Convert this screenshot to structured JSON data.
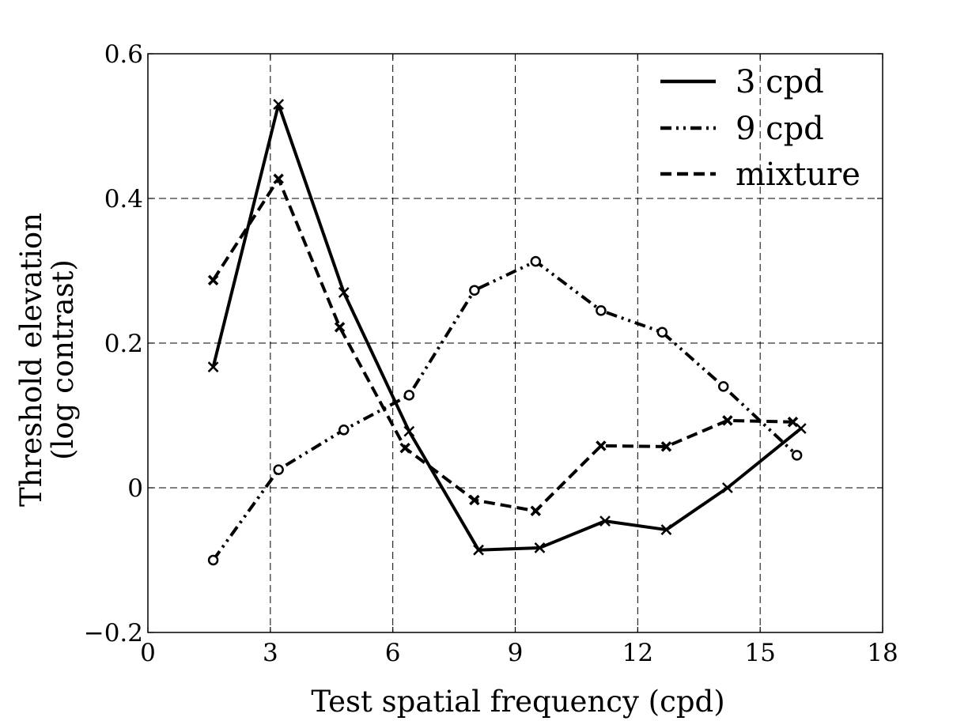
{
  "chart_data": {
    "type": "line",
    "xlabel": "Test spatial frequency (cpd)",
    "ylabel_line1": "Threshold elevation",
    "ylabel_line2": "(log contrast)",
    "xlim": [
      0,
      18
    ],
    "ylim": [
      -0.2,
      0.6
    ],
    "xticks": [
      0,
      3,
      6,
      9,
      12,
      15,
      18
    ],
    "xtick_labels": [
      "0",
      "3",
      "6",
      "9",
      "12",
      "15",
      "18"
    ],
    "yticks": [
      -0.2,
      0,
      0.2,
      0.4,
      0.6
    ],
    "ytick_labels": [
      "−0.2",
      "0",
      "0.2",
      "0.4",
      "0.6"
    ],
    "grid": true,
    "legend_position": "top-right",
    "series": [
      {
        "name": "3 cpd",
        "line_style": "solid",
        "marker": "x",
        "x": [
          1.6,
          3.2,
          4.8,
          6.4,
          8.1,
          9.6,
          11.2,
          12.7,
          14.2,
          16.0
        ],
        "y": [
          0.167,
          0.53,
          0.27,
          0.078,
          -0.086,
          -0.083,
          -0.046,
          -0.058,
          0.0,
          0.082
        ]
      },
      {
        "name": "9 cpd",
        "line_style": "dashdotdot",
        "marker": "o",
        "x": [
          1.6,
          3.2,
          4.8,
          6.4,
          8.0,
          9.5,
          11.1,
          12.6,
          14.1,
          15.9
        ],
        "y": [
          -0.1,
          0.025,
          0.08,
          0.128,
          0.273,
          0.313,
          0.245,
          0.215,
          0.14,
          0.045
        ]
      },
      {
        "name": "mixture",
        "line_style": "dashed",
        "marker": "x-bold",
        "x": [
          1.6,
          3.2,
          4.7,
          6.3,
          8.0,
          9.5,
          11.1,
          12.7,
          14.2,
          15.8
        ],
        "y": [
          0.287,
          0.427,
          0.222,
          0.055,
          -0.017,
          -0.032,
          0.058,
          0.057,
          0.093,
          0.091
        ]
      }
    ]
  }
}
